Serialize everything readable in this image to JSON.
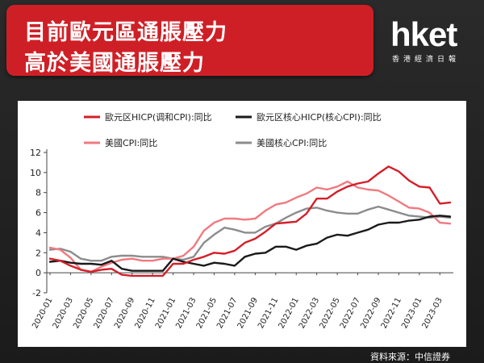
{
  "header": {
    "title_line1": "目前歐元區通脹壓力",
    "title_line2": "高於美國通脹壓力",
    "logo": "hket",
    "logo_sub": "香港經濟日報"
  },
  "source": "資料來源：中信證券",
  "colors": {
    "title_bg": "#cf1f26",
    "ez_hicp": "#d41f29",
    "ez_core": "#1a1a1a",
    "us_cpi": "#f07a80",
    "us_core": "#8c8c8c"
  },
  "chart_data": {
    "type": "line",
    "x": [
      "2020-01",
      "2020-02",
      "2020-03",
      "2020-04",
      "2020-05",
      "2020-06",
      "2020-07",
      "2020-08",
      "2020-09",
      "2020-10",
      "2020-11",
      "2020-12",
      "2021-01",
      "2021-02",
      "2021-03",
      "2021-04",
      "2021-05",
      "2021-06",
      "2021-07",
      "2021-08",
      "2021-09",
      "2021-10",
      "2021-11",
      "2021-12",
      "2022-01",
      "2022-02",
      "2022-03",
      "2022-04",
      "2022-05",
      "2022-06",
      "2022-07",
      "2022-08",
      "2022-09",
      "2022-10",
      "2022-11",
      "2022-12",
      "2023-01",
      "2023-02",
      "2023-03",
      "2023-04"
    ],
    "tick_labels": [
      "2020-01",
      "2020-03",
      "2020-05",
      "2020-07",
      "2020-09",
      "2020-11",
      "2021-01",
      "2021-03",
      "2021-05",
      "2021-07",
      "2021-09",
      "2021-11",
      "2022-01",
      "2022-03",
      "2022-05",
      "2022-07",
      "2022-09",
      "2022-11",
      "2023-01",
      "2023-03"
    ],
    "ylim": [
      -2,
      12
    ],
    "yticks": [
      -2,
      0,
      2,
      4,
      6,
      8,
      10,
      12
    ],
    "grid": false,
    "legend_position": "top",
    "series": [
      {
        "name": "歐元区HICP(调和CPI):同比",
        "color": "#d41f29",
        "values": [
          1.4,
          1.2,
          0.7,
          0.3,
          0.1,
          0.3,
          0.4,
          -0.2,
          -0.3,
          -0.3,
          -0.3,
          -0.3,
          0.9,
          0.9,
          1.3,
          1.6,
          2.0,
          1.9,
          2.2,
          3.0,
          3.4,
          4.1,
          4.9,
          5.0,
          5.1,
          5.9,
          7.4,
          7.4,
          8.1,
          8.6,
          8.9,
          9.1,
          9.9,
          10.6,
          10.1,
          9.2,
          8.6,
          8.5,
          6.9,
          7.0
        ]
      },
      {
        "name": "歐元区核心HICP(核心CPI):同比",
        "color": "#1a1a1a",
        "values": [
          1.1,
          1.2,
          1.0,
          0.9,
          0.9,
          0.8,
          1.2,
          0.4,
          0.2,
          0.2,
          0.2,
          0.2,
          1.4,
          1.1,
          0.9,
          0.7,
          1.0,
          0.9,
          0.7,
          1.6,
          1.9,
          2.0,
          2.6,
          2.6,
          2.3,
          2.7,
          2.9,
          3.5,
          3.8,
          3.7,
          4.0,
          4.3,
          4.8,
          5.0,
          5.0,
          5.2,
          5.3,
          5.6,
          5.7,
          5.6
        ]
      },
      {
        "name": "美國CPI:同比",
        "color": "#f07a80",
        "values": [
          2.5,
          2.3,
          1.5,
          0.3,
          0.1,
          0.6,
          1.0,
          1.3,
          1.4,
          1.2,
          1.2,
          1.4,
          1.4,
          1.7,
          2.6,
          4.2,
          5.0,
          5.4,
          5.4,
          5.3,
          5.4,
          6.2,
          6.8,
          7.0,
          7.5,
          7.9,
          8.5,
          8.3,
          8.6,
          9.1,
          8.5,
          8.3,
          8.2,
          7.7,
          7.1,
          6.5,
          6.4,
          6.0,
          5.0,
          4.9
        ]
      },
      {
        "name": "美國核心CPI:同比",
        "color": "#8c8c8c",
        "values": [
          2.3,
          2.4,
          2.1,
          1.4,
          1.2,
          1.2,
          1.6,
          1.7,
          1.7,
          1.6,
          1.6,
          1.6,
          1.4,
          1.3,
          1.6,
          3.0,
          3.8,
          4.5,
          4.3,
          4.0,
          4.0,
          4.6,
          4.9,
          5.5,
          6.0,
          6.4,
          6.5,
          6.2,
          6.0,
          5.9,
          5.9,
          6.3,
          6.6,
          6.3,
          6.0,
          5.7,
          5.6,
          5.5,
          5.6,
          5.5
        ]
      }
    ]
  }
}
